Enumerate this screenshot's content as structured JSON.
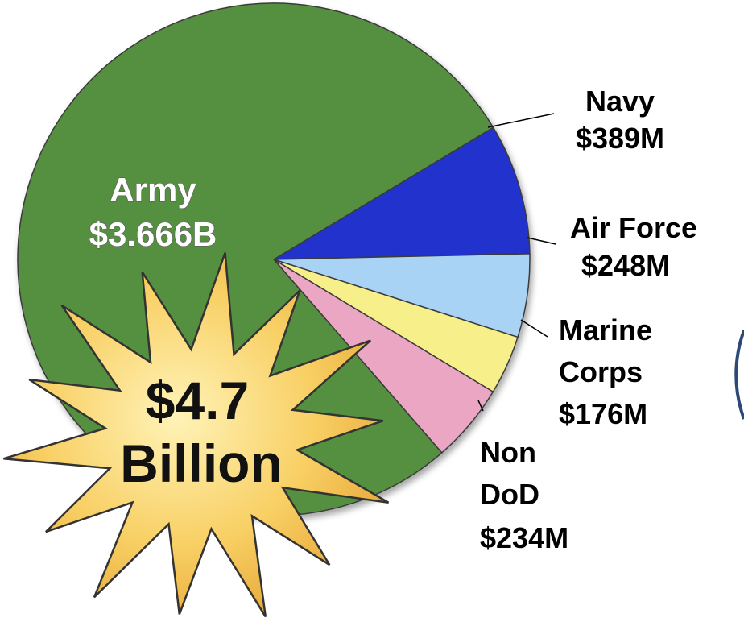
{
  "chart_data": {
    "type": "pie",
    "title": "",
    "slices": [
      {
        "name": "Navy",
        "value_label": "$389M",
        "value": 389,
        "color": "#2233cc"
      },
      {
        "name": "Air Force",
        "value_label": "$248M",
        "value": 248,
        "color": "#a9d3f5"
      },
      {
        "name": "Marine Corps",
        "value_label": "$176M",
        "value": 176,
        "color": "#f7f08a"
      },
      {
        "name": "Non DoD",
        "value_label": "$234M",
        "value": 234,
        "color": "#eba6c4"
      },
      {
        "name": "Army",
        "value_label": "$3.666B",
        "value": 3666,
        "color": "#55903f"
      }
    ]
  },
  "labels": {
    "army": {
      "name": "Army",
      "value": "$3.666B"
    },
    "navy": {
      "name": "Navy",
      "value": "$389M"
    },
    "air_force": {
      "name": "Air Force",
      "value": "$248M"
    },
    "marine": {
      "line1": "Marine",
      "line2": "Corps",
      "value": "$176M"
    },
    "non_dod": {
      "line1": "Non",
      "line2": "DoD",
      "value": "$234M"
    }
  },
  "total_burst": {
    "line1": "$4.7",
    "line2": "Billion",
    "color": "#f7c95a"
  },
  "colors": {
    "outline": "#3a3a3a",
    "background": "#ffffff"
  }
}
